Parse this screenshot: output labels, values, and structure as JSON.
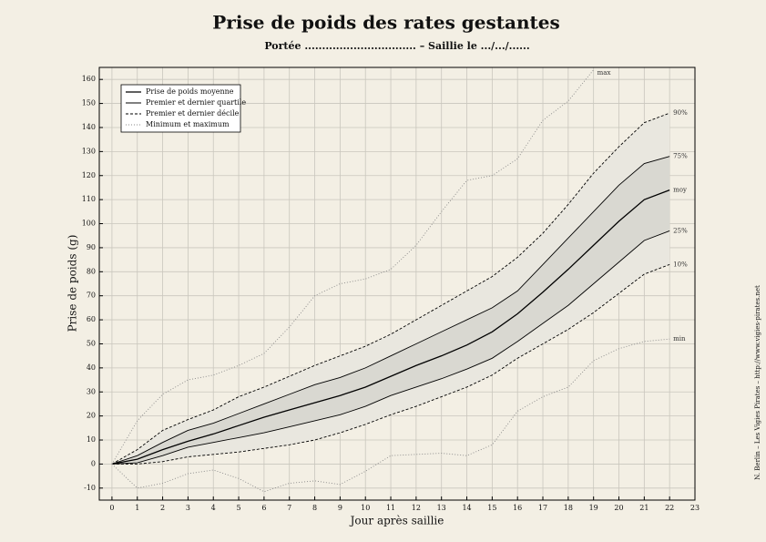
{
  "chart_data": {
    "type": "line",
    "title": "Prise de poids des rates gestantes",
    "subtitle": "Portée ................................   –   Saillie le .../.../......",
    "x_label": "Jour après saillie",
    "y_label": "Prise de poids (g)",
    "side_note": "N. Berlin – Les Vigies Pirates – http://www.vigies-pirates.net",
    "x": [
      0,
      1,
      2,
      3,
      4,
      5,
      6,
      7,
      8,
      9,
      10,
      11,
      12,
      13,
      14,
      15,
      16,
      17,
      18,
      19,
      20,
      21,
      22
    ],
    "xlim": [
      -0.5,
      23
    ],
    "xticks": [
      0,
      1,
      2,
      3,
      4,
      5,
      6,
      7,
      8,
      9,
      10,
      11,
      12,
      13,
      14,
      15,
      16,
      17,
      18,
      19,
      20,
      21,
      22,
      23
    ],
    "ylim": [
      -15,
      165
    ],
    "yticks": [
      -10,
      0,
      10,
      20,
      30,
      40,
      50,
      60,
      70,
      80,
      90,
      100,
      110,
      120,
      130,
      140,
      150,
      160
    ],
    "grid": true,
    "legend": "upper left",
    "series": [
      {
        "name": "Prise de poids moyenne",
        "color": "#000000",
        "dash": "none",
        "width": 1.3,
        "lines": [
          {
            "label": "moy",
            "values": [
              0,
              2,
              6,
              9.5,
              12.5,
              16,
              19.5,
              22.5,
              25.5,
              28.5,
              32,
              36.5,
              41,
              45,
              49.5,
              55,
              62.5,
              71.5,
              81,
              91,
              101,
              110,
              114
            ]
          }
        ]
      },
      {
        "name": "Premier et dernier quartile",
        "color": "#000000",
        "dash": "none",
        "width": 0.9,
        "fill": "#d9d8d1",
        "lines": [
          {
            "label": "75%",
            "values": [
              0,
              3.5,
              9,
              14,
              17,
              21,
              25,
              29,
              33,
              36,
              40,
              45,
              50,
              55,
              60,
              65,
              72,
              83,
              94,
              105,
              116,
              125,
              128
            ]
          },
          {
            "label": "25%",
            "values": [
              0,
              0.5,
              3.5,
              7,
              9,
              11,
              13,
              15.5,
              18,
              20.5,
              24,
              28.5,
              32,
              35.5,
              39.5,
              44,
              51,
              58.5,
              66,
              75,
              84,
              93,
              97
            ]
          }
        ]
      },
      {
        "name": "Premier et dernier décile",
        "color": "#000000",
        "dash": "3,2",
        "width": 0.9,
        "fill": "#e9e7df",
        "lines": [
          {
            "label": "90%",
            "values": [
              0,
              6,
              14,
              18.5,
              22.5,
              28,
              32,
              36.5,
              41,
              45,
              49,
              54,
              60,
              66,
              72,
              78,
              86,
              96,
              108,
              121,
              132,
              142,
              146
            ]
          },
          {
            "label": "10%",
            "values": [
              0,
              0,
              1,
              3,
              4,
              5,
              6.5,
              8,
              10,
              13,
              16.5,
              20.5,
              24,
              28,
              32,
              37,
              44,
              50,
              56,
              63,
              71,
              79,
              83
            ]
          }
        ]
      },
      {
        "name": "Minimum et maximum",
        "color": "#888888",
        "dash": "1,2",
        "width": 0.9,
        "lines": [
          {
            "label": "max",
            "values": [
              0,
              18,
              29,
              35,
              37,
              41,
              46,
              57,
              70,
              75,
              77,
              81,
              91,
              105,
              118,
              120,
              127,
              143,
              151,
              164,
              null,
              null,
              null
            ]
          },
          {
            "label": "min",
            "values": [
              0,
              -10,
              -8,
              -4,
              -2.5,
              -6,
              -11.5,
              -8,
              -7,
              -8.5,
              -3,
              3.5,
              4,
              4.5,
              3.5,
              8,
              22,
              28,
              32,
              43,
              48,
              51,
              52
            ]
          }
        ]
      }
    ]
  }
}
